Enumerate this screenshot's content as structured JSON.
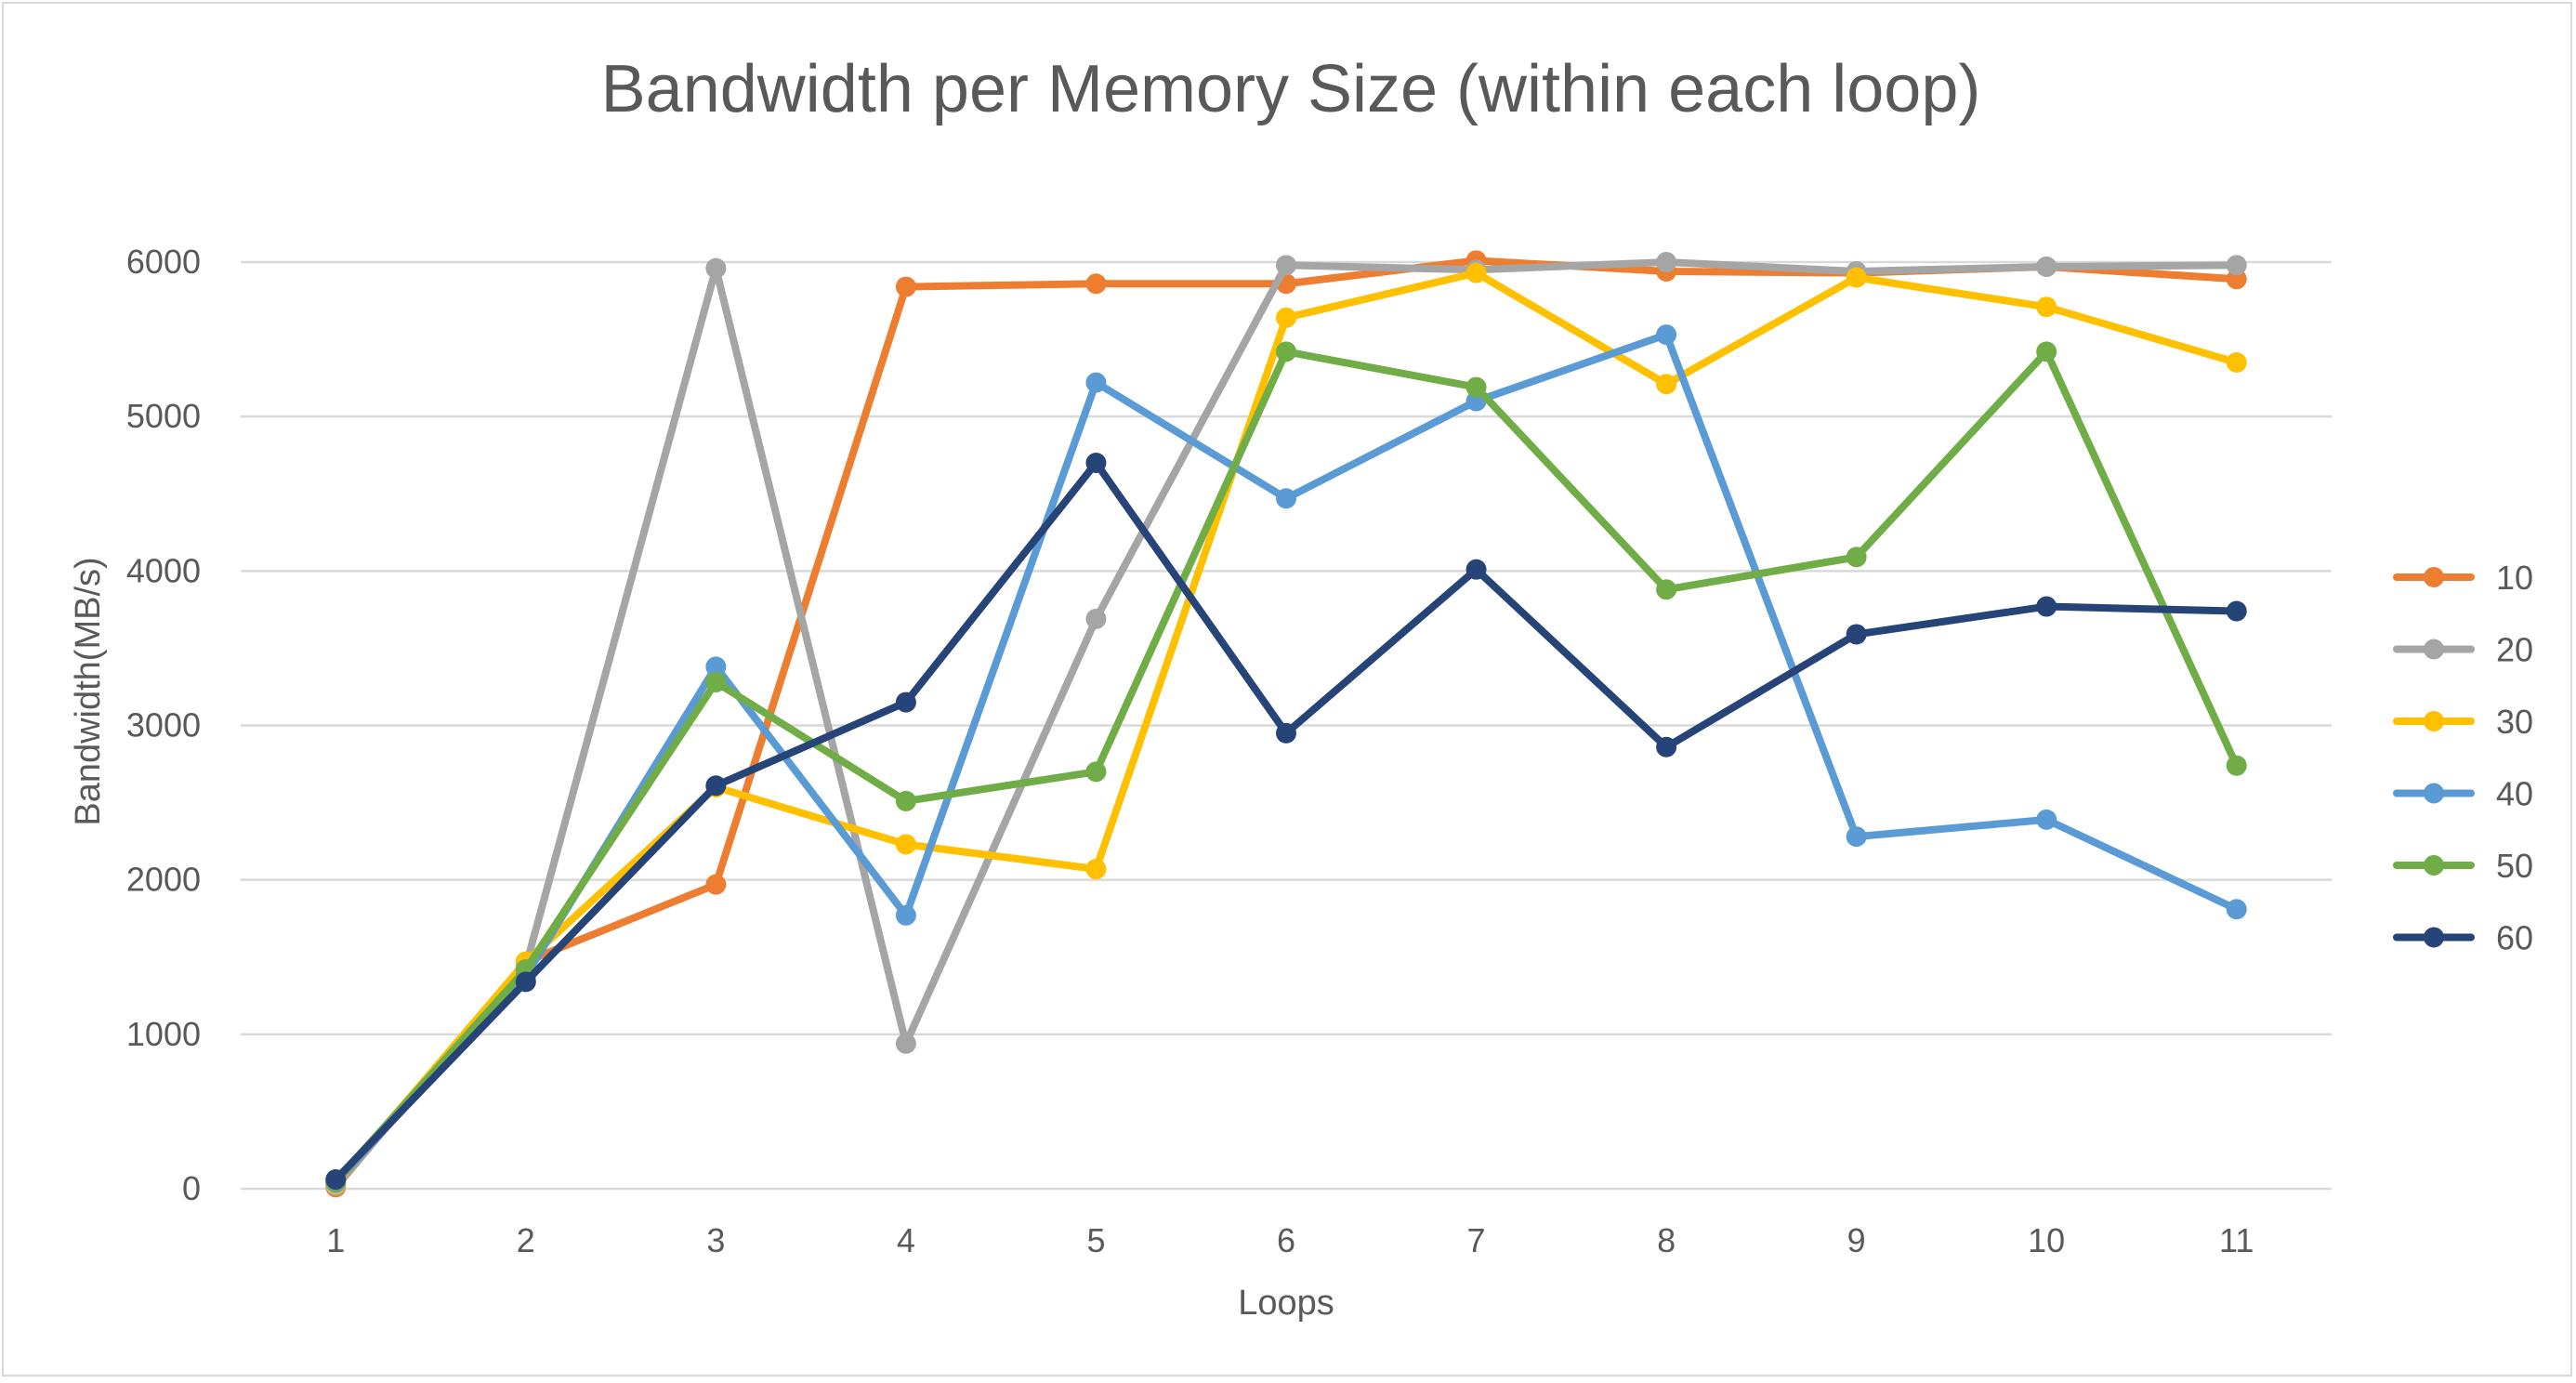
{
  "chart_data": {
    "type": "line",
    "title": "Bandwidth per Memory Size (within each loop)",
    "xlabel": "Loops",
    "ylabel": "Bandwidth(MB/s)",
    "categories": [
      "1",
      "2",
      "3",
      "4",
      "5",
      "6",
      "7",
      "8",
      "9",
      "10",
      "11"
    ],
    "ylim": [
      0,
      6000
    ],
    "yticks": [
      "0",
      "1000",
      "2000",
      "3000",
      "4000",
      "5000",
      "6000"
    ],
    "grid": true,
    "legend_position": "right",
    "series": [
      {
        "name": "10",
        "color": "#ED7D31",
        "values": [
          10,
          1470,
          1970,
          5840,
          5860,
          5860,
          6010,
          5940,
          5930,
          5970,
          5890
        ]
      },
      {
        "name": "20",
        "color": "#A5A5A5",
        "values": [
          20,
          1440,
          5960,
          940,
          3690,
          5980,
          5950,
          6000,
          5940,
          5970,
          5980
        ]
      },
      {
        "name": "30",
        "color": "#FFC000",
        "values": [
          30,
          1470,
          2600,
          2230,
          2070,
          5640,
          5930,
          5210,
          5900,
          5710,
          5350
        ]
      },
      {
        "name": "40",
        "color": "#5B9BD5",
        "values": [
          40,
          1380,
          3380,
          1770,
          5220,
          4470,
          5100,
          5530,
          2280,
          2390,
          1810
        ]
      },
      {
        "name": "50",
        "color": "#70AD47",
        "values": [
          50,
          1420,
          3280,
          2510,
          2700,
          5420,
          5190,
          3880,
          4090,
          5420,
          2740
        ]
      },
      {
        "name": "60",
        "color": "#264478",
        "values": [
          60,
          1340,
          2610,
          3150,
          4700,
          2950,
          4010,
          2860,
          3590,
          3770,
          3740
        ]
      }
    ]
  }
}
